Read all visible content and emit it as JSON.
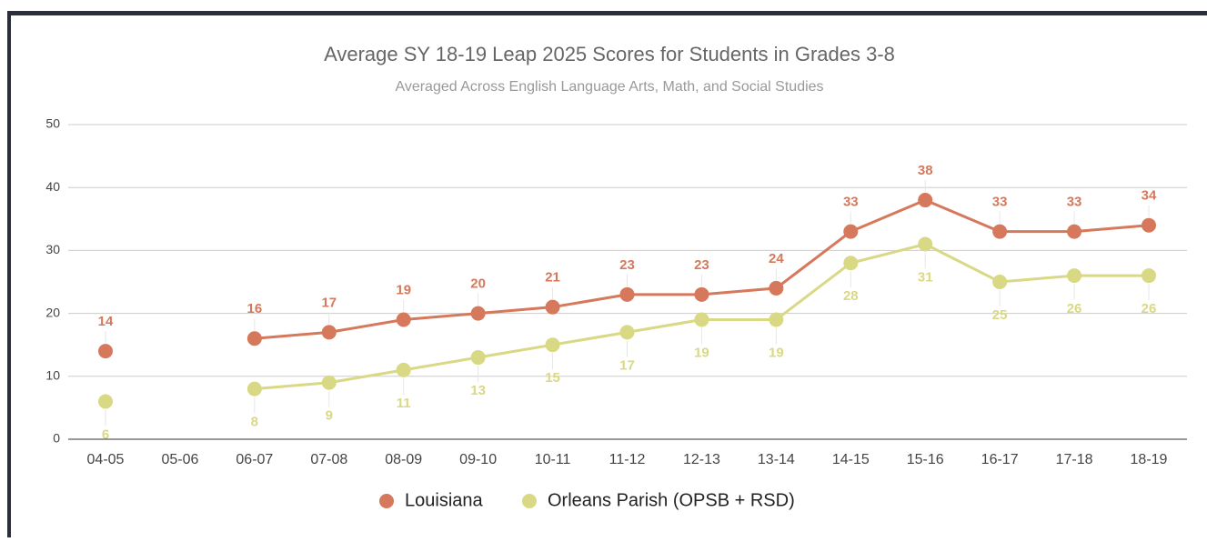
{
  "chart_data": {
    "type": "line",
    "title": "Average SY 18-19 Leap 2025 Scores for Students in Grades 3-8",
    "subtitle": "Averaged Across English Language Arts, Math, and Social Studies",
    "categories": [
      "04-05",
      "05-06",
      "06-07",
      "07-08",
      "08-09",
      "09-10",
      "10-11",
      "11-12",
      "12-13",
      "13-14",
      "14-15",
      "15-16",
      "16-17",
      "17-18",
      "18-19"
    ],
    "series": [
      {
        "name": "Louisiana",
        "color": "#d5785b",
        "values": [
          14,
          null,
          16,
          17,
          19,
          20,
          21,
          23,
          23,
          24,
          33,
          38,
          33,
          33,
          34
        ]
      },
      {
        "name": "Orleans Parish (OPSB + RSD)",
        "color": "#d9d884",
        "values": [
          6,
          null,
          8,
          9,
          11,
          13,
          15,
          17,
          19,
          19,
          28,
          31,
          25,
          26,
          26
        ]
      }
    ],
    "ylim": [
      0,
      50
    ],
    "yticks": [
      0,
      10,
      20,
      30,
      40,
      50
    ],
    "grid": true,
    "legend": "bottom"
  }
}
